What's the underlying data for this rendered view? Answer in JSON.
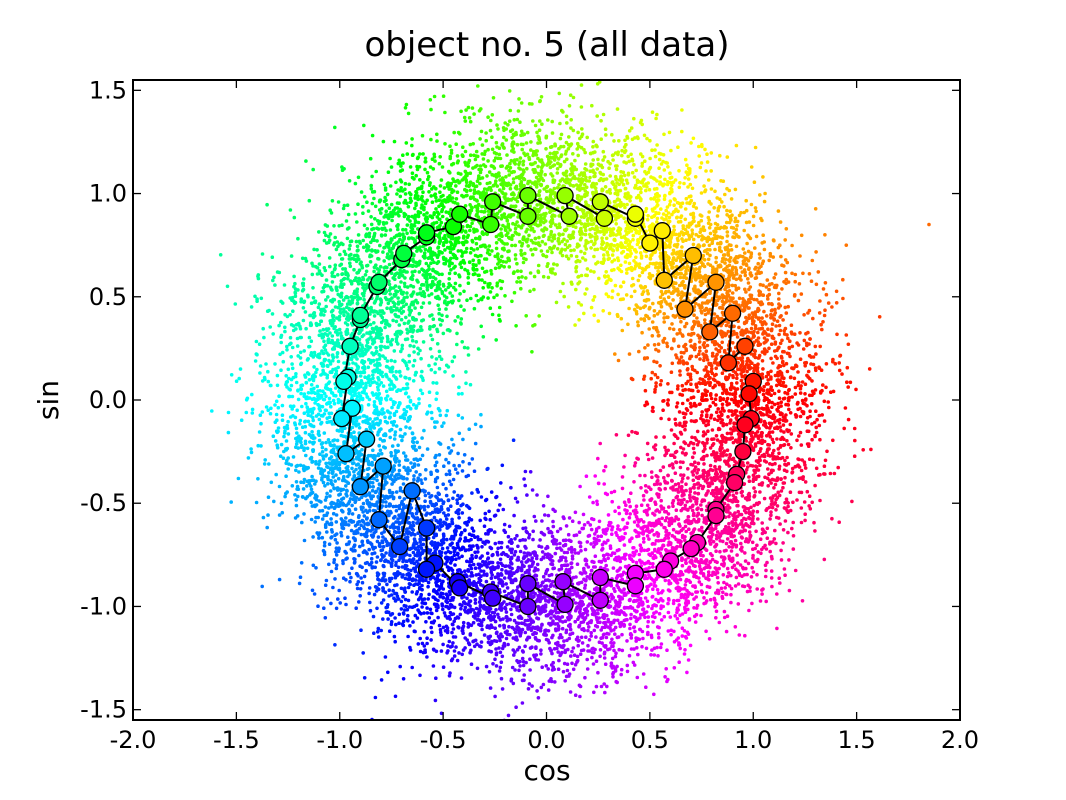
{
  "chart_data": {
    "type": "scatter",
    "title": "object no. 5 (all data)",
    "xlabel": "cos",
    "ylabel": "sin",
    "xlim": [
      -2.0,
      2.0
    ],
    "ylim": [
      -1.55,
      1.55
    ],
    "xticks": [
      -2.0,
      -1.5,
      -1.0,
      -0.5,
      0.0,
      0.5,
      1.0,
      1.5,
      2.0
    ],
    "xtick_labels": [
      "-2.0",
      "-1.5",
      "-1.0",
      "-0.5",
      "0.0",
      "0.5",
      "1.0",
      "1.5",
      "2.0"
    ],
    "yticks": [
      -1.5,
      -1.0,
      -0.5,
      0.0,
      0.5,
      1.0,
      1.5
    ],
    "ytick_labels": [
      "-1.5",
      "-1.0",
      "-0.5",
      "0.0",
      "0.5",
      "1.0",
      "1.5"
    ],
    "grid": false,
    "legend": "none",
    "colormap": "hue wheel by angle (red at 0°, yellow, green, cyan, blue, violet, magenta)",
    "series": [
      {
        "kind": "noisy scatter points around the unit circle, colored by angle",
        "point_count_estimate": 12000,
        "center": [
          0.0,
          0.0
        ],
        "radius_mean": 1.0,
        "radius_spread": 0.2,
        "outliers": [
          [
            1.85,
            0.85
          ],
          [
            1.46,
            0.27
          ],
          [
            1.45,
            0.75
          ],
          [
            -1.48,
            0.15
          ]
        ]
      },
      {
        "kind": "circle markers joined by black line (curve through unit circle with short spurs)",
        "marker_face": "hue by angle",
        "marker_edge": "#000000",
        "points": [
          [
            1.0,
            0.09
          ],
          [
            0.98,
            0.03
          ],
          [
            0.99,
            -0.09
          ],
          [
            0.96,
            -0.12
          ],
          [
            0.95,
            -0.25
          ],
          [
            0.92,
            -0.36
          ],
          [
            0.91,
            -0.4
          ],
          [
            0.82,
            -0.53
          ],
          [
            0.82,
            -0.56
          ],
          [
            0.73,
            -0.69
          ],
          [
            0.7,
            -0.72
          ],
          [
            0.6,
            -0.78
          ],
          [
            0.57,
            -0.82
          ],
          [
            0.43,
            -0.84
          ],
          [
            0.43,
            -0.9
          ],
          [
            0.26,
            -0.86
          ],
          [
            0.26,
            -0.97
          ],
          [
            0.08,
            -0.88
          ],
          [
            0.09,
            -0.99
          ],
          [
            -0.09,
            -0.89
          ],
          [
            -0.09,
            -1.0
          ],
          [
            -0.27,
            -0.93
          ],
          [
            -0.26,
            -0.96
          ],
          [
            -0.43,
            -0.88
          ],
          [
            -0.42,
            -0.91
          ],
          [
            -0.54,
            -0.79
          ],
          [
            -0.58,
            -0.82
          ],
          [
            -0.58,
            -0.62
          ],
          [
            -0.65,
            -0.44
          ],
          [
            -0.71,
            -0.71
          ],
          [
            -0.81,
            -0.58
          ],
          [
            -0.79,
            -0.32
          ],
          [
            -0.9,
            -0.42
          ],
          [
            -0.87,
            -0.19
          ],
          [
            -0.97,
            -0.26
          ],
          [
            -0.94,
            -0.04
          ],
          [
            -0.99,
            -0.09
          ],
          [
            -0.96,
            0.11
          ],
          [
            -0.98,
            0.09
          ],
          [
            -0.95,
            0.26
          ],
          [
            -0.9,
            0.39
          ],
          [
            -0.9,
            0.41
          ],
          [
            -0.82,
            0.55
          ],
          [
            -0.81,
            0.57
          ],
          [
            -0.7,
            0.68
          ],
          [
            -0.69,
            0.71
          ],
          [
            -0.58,
            0.79
          ],
          [
            -0.58,
            0.81
          ],
          [
            -0.45,
            0.84
          ],
          [
            -0.42,
            0.9
          ],
          [
            -0.27,
            0.85
          ],
          [
            -0.26,
            0.96
          ],
          [
            -0.09,
            0.89
          ],
          [
            -0.09,
            0.99
          ],
          [
            0.11,
            0.89
          ],
          [
            0.09,
            0.99
          ],
          [
            0.28,
            0.88
          ],
          [
            0.26,
            0.96
          ],
          [
            0.43,
            0.88
          ],
          [
            0.43,
            0.9
          ],
          [
            0.5,
            0.76
          ],
          [
            0.56,
            0.82
          ],
          [
            0.57,
            0.58
          ],
          [
            0.71,
            0.7
          ],
          [
            0.67,
            0.44
          ],
          [
            0.82,
            0.57
          ],
          [
            0.79,
            0.33
          ],
          [
            0.9,
            0.42
          ],
          [
            0.88,
            0.18
          ],
          [
            0.96,
            0.26
          ]
        ]
      }
    ]
  }
}
